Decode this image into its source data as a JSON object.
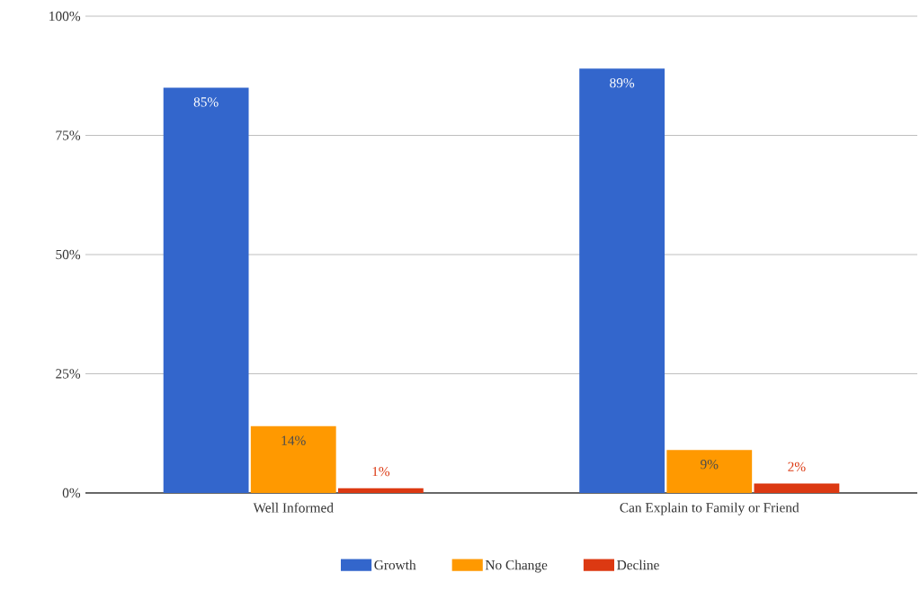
{
  "chart_data": {
    "type": "bar",
    "categories": [
      "Well Informed",
      "Can Explain to Family or Friend"
    ],
    "series": [
      {
        "name": "Growth",
        "color": "#3366cc",
        "values": [
          85,
          89
        ],
        "value_labels": [
          "85%",
          "89%"
        ]
      },
      {
        "name": "No Change",
        "color": "#ff9900",
        "values": [
          14,
          9
        ],
        "value_labels": [
          "14%",
          "9%"
        ]
      },
      {
        "name": "Decline",
        "color": "#dc3912",
        "values": [
          1,
          2
        ],
        "value_labels": [
          "1%",
          "2%"
        ]
      }
    ],
    "ylim": [
      0,
      100
    ],
    "yticks": [
      {
        "value": 0,
        "label": "0%"
      },
      {
        "value": 25,
        "label": "25%"
      },
      {
        "value": 50,
        "label": "50%"
      },
      {
        "value": 75,
        "label": "75%"
      },
      {
        "value": 100,
        "label": "100%"
      }
    ],
    "grid": "y",
    "legend": "bottom"
  }
}
